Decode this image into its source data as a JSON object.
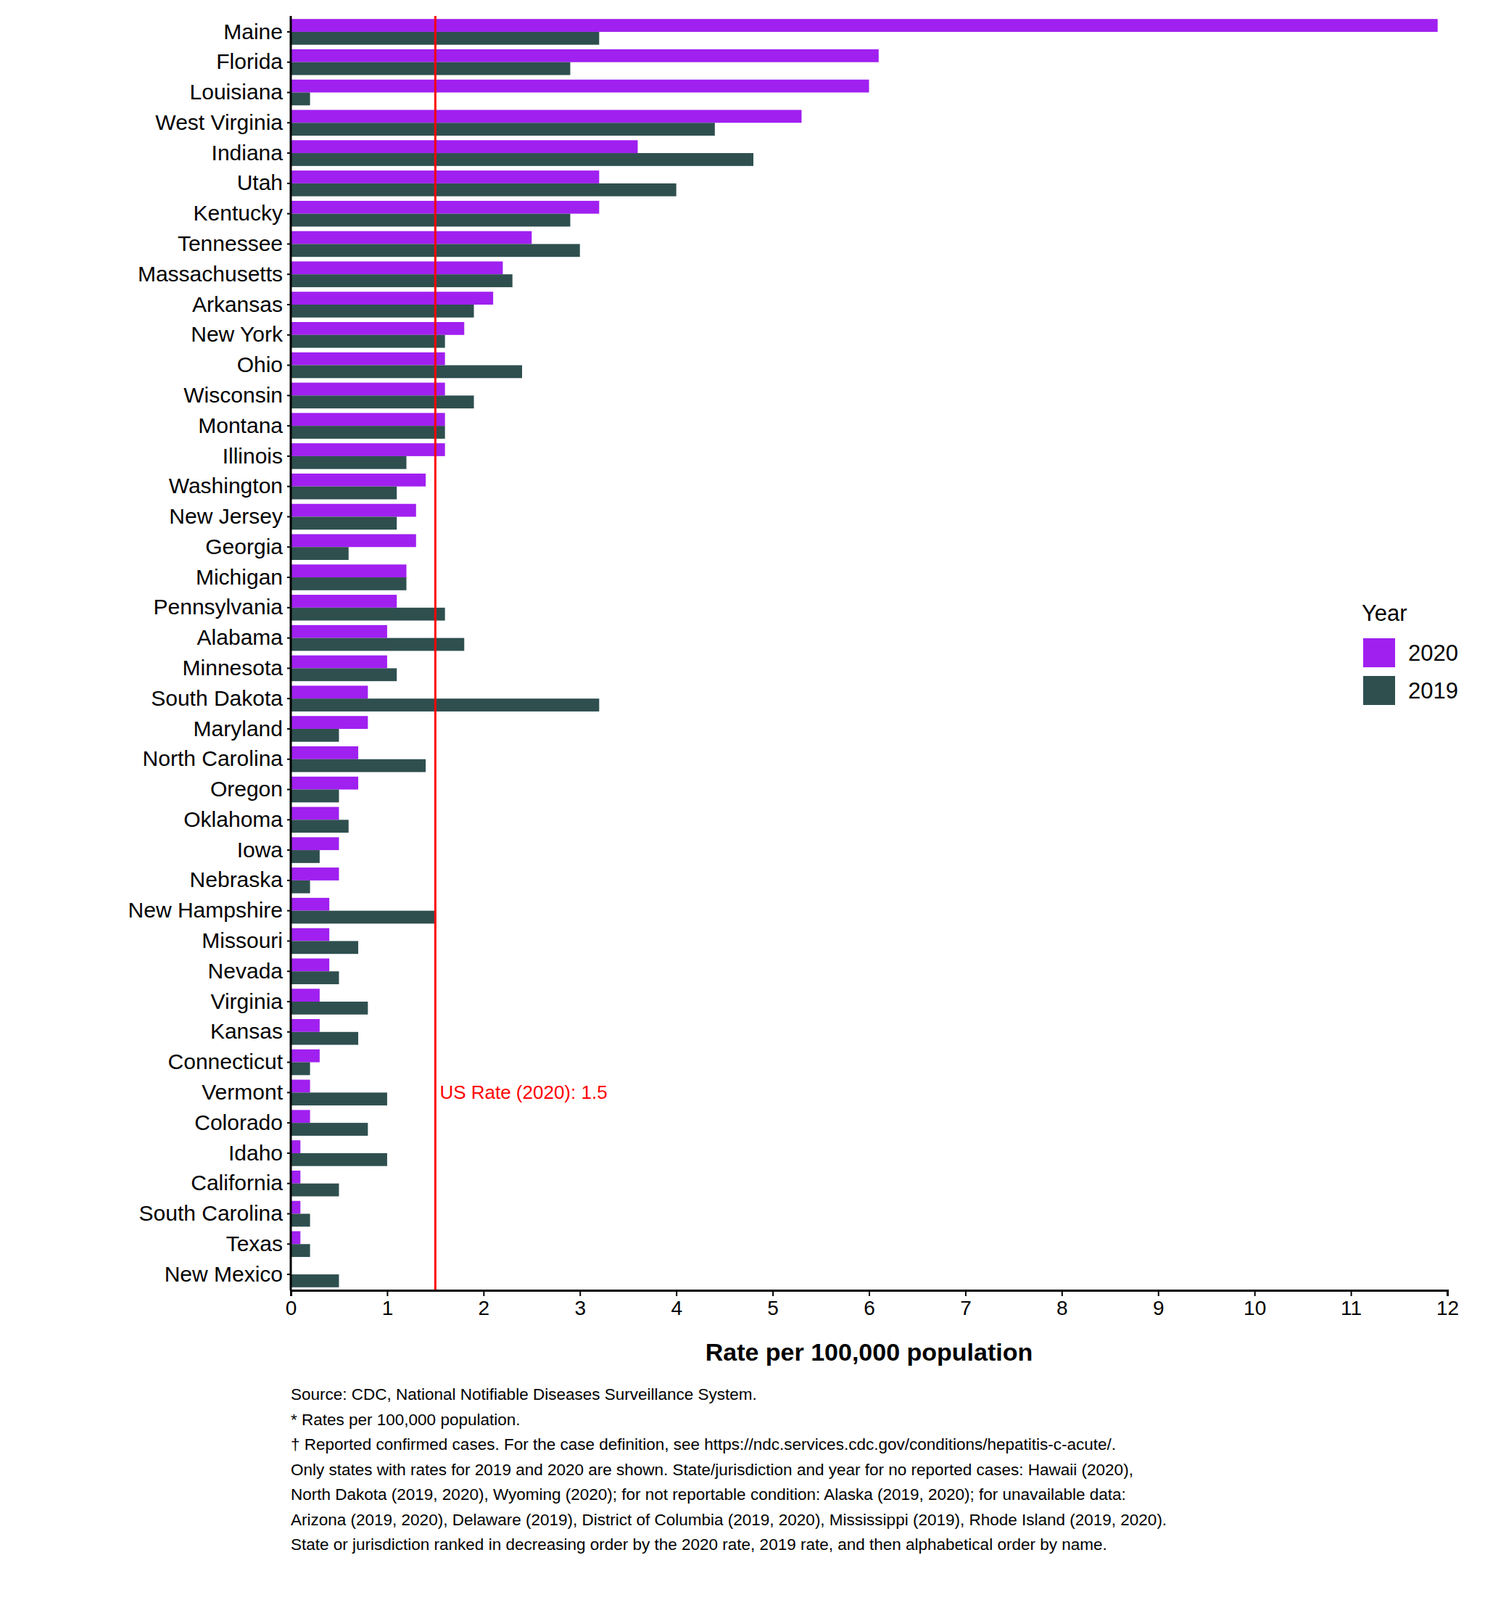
{
  "chart_data": {
    "type": "bar",
    "orientation": "horizontal",
    "x_label": "Rate per 100,000 population",
    "categories": [
      "Maine",
      "Florida",
      "Louisiana",
      "West Virginia",
      "Indiana",
      "Utah",
      "Kentucky",
      "Tennessee",
      "Massachusetts",
      "Arkansas",
      "New York",
      "Ohio",
      "Wisconsin",
      "Montana",
      "Illinois",
      "Washington",
      "New Jersey",
      "Georgia",
      "Michigan",
      "Pennsylvania",
      "Alabama",
      "Minnesota",
      "South Dakota",
      "Maryland",
      "North Carolina",
      "Oregon",
      "Oklahoma",
      "Iowa",
      "Nebraska",
      "New Hampshire",
      "Missouri",
      "Nevada",
      "Virginia",
      "Kansas",
      "Connecticut",
      "Vermont",
      "Colorado",
      "Idaho",
      "California",
      "South Carolina",
      "Texas",
      "New Mexico"
    ],
    "series": [
      {
        "name": "2020",
        "color": "#a020f0",
        "values": [
          11.9,
          6.1,
          6.0,
          5.3,
          3.6,
          3.2,
          3.2,
          2.5,
          2.2,
          2.1,
          1.8,
          1.6,
          1.6,
          1.6,
          1.6,
          1.4,
          1.3,
          1.3,
          1.2,
          1.1,
          1.0,
          1.0,
          0.8,
          0.8,
          0.7,
          0.7,
          0.5,
          0.5,
          0.5,
          0.4,
          0.4,
          0.4,
          0.3,
          0.3,
          0.3,
          0.2,
          0.2,
          0.1,
          0.1,
          0.1,
          0.1,
          0.0
        ]
      },
      {
        "name": "2019",
        "color": "#2f4f4f",
        "values": [
          3.2,
          2.9,
          0.2,
          4.4,
          4.8,
          4.0,
          2.9,
          3.0,
          2.3,
          1.9,
          1.6,
          2.4,
          1.9,
          1.6,
          1.2,
          1.1,
          1.1,
          0.6,
          1.2,
          1.6,
          1.8,
          1.1,
          3.2,
          0.5,
          1.4,
          0.5,
          0.6,
          0.3,
          0.2,
          1.5,
          0.7,
          0.5,
          0.8,
          0.7,
          0.2,
          1.0,
          0.8,
          1.0,
          0.5,
          0.2,
          0.2,
          0.5
        ]
      }
    ],
    "xlim": [
      0,
      12
    ],
    "xticks": [
      0,
      1,
      2,
      3,
      4,
      5,
      6,
      7,
      8,
      9,
      10,
      11,
      12
    ],
    "grid": false,
    "legend": "right",
    "legend_title": "Year",
    "annotations": [
      {
        "type": "line",
        "x": 1.5,
        "label": "US Rate (2020): 1.5",
        "color": "#ff0000"
      }
    ],
    "notes": [
      "Source: CDC, National Notifiable Diseases Surveillance System.",
      "* Rates per 100,000 population.",
      "† Reported confirmed cases. For the case definition, see https://ndc.services.cdc.gov/conditions/hepatitis-c-acute/.",
      "Only states with rates for 2019 and 2020 are shown. State/jurisdiction and year for no reported cases: Hawaii (2020),",
      "North Dakota (2019, 2020), Wyoming (2020); for not reportable condition: Alaska (2019, 2020); for unavailable data:",
      "Arizona (2019, 2020), Delaware (2019), District of Columbia (2019, 2020), Mississippi (2019), Rhode Island (2019, 2020).",
      "State or jurisdiction ranked in decreasing order by the 2020 rate, 2019 rate, and then alphabetical order by name."
    ]
  }
}
